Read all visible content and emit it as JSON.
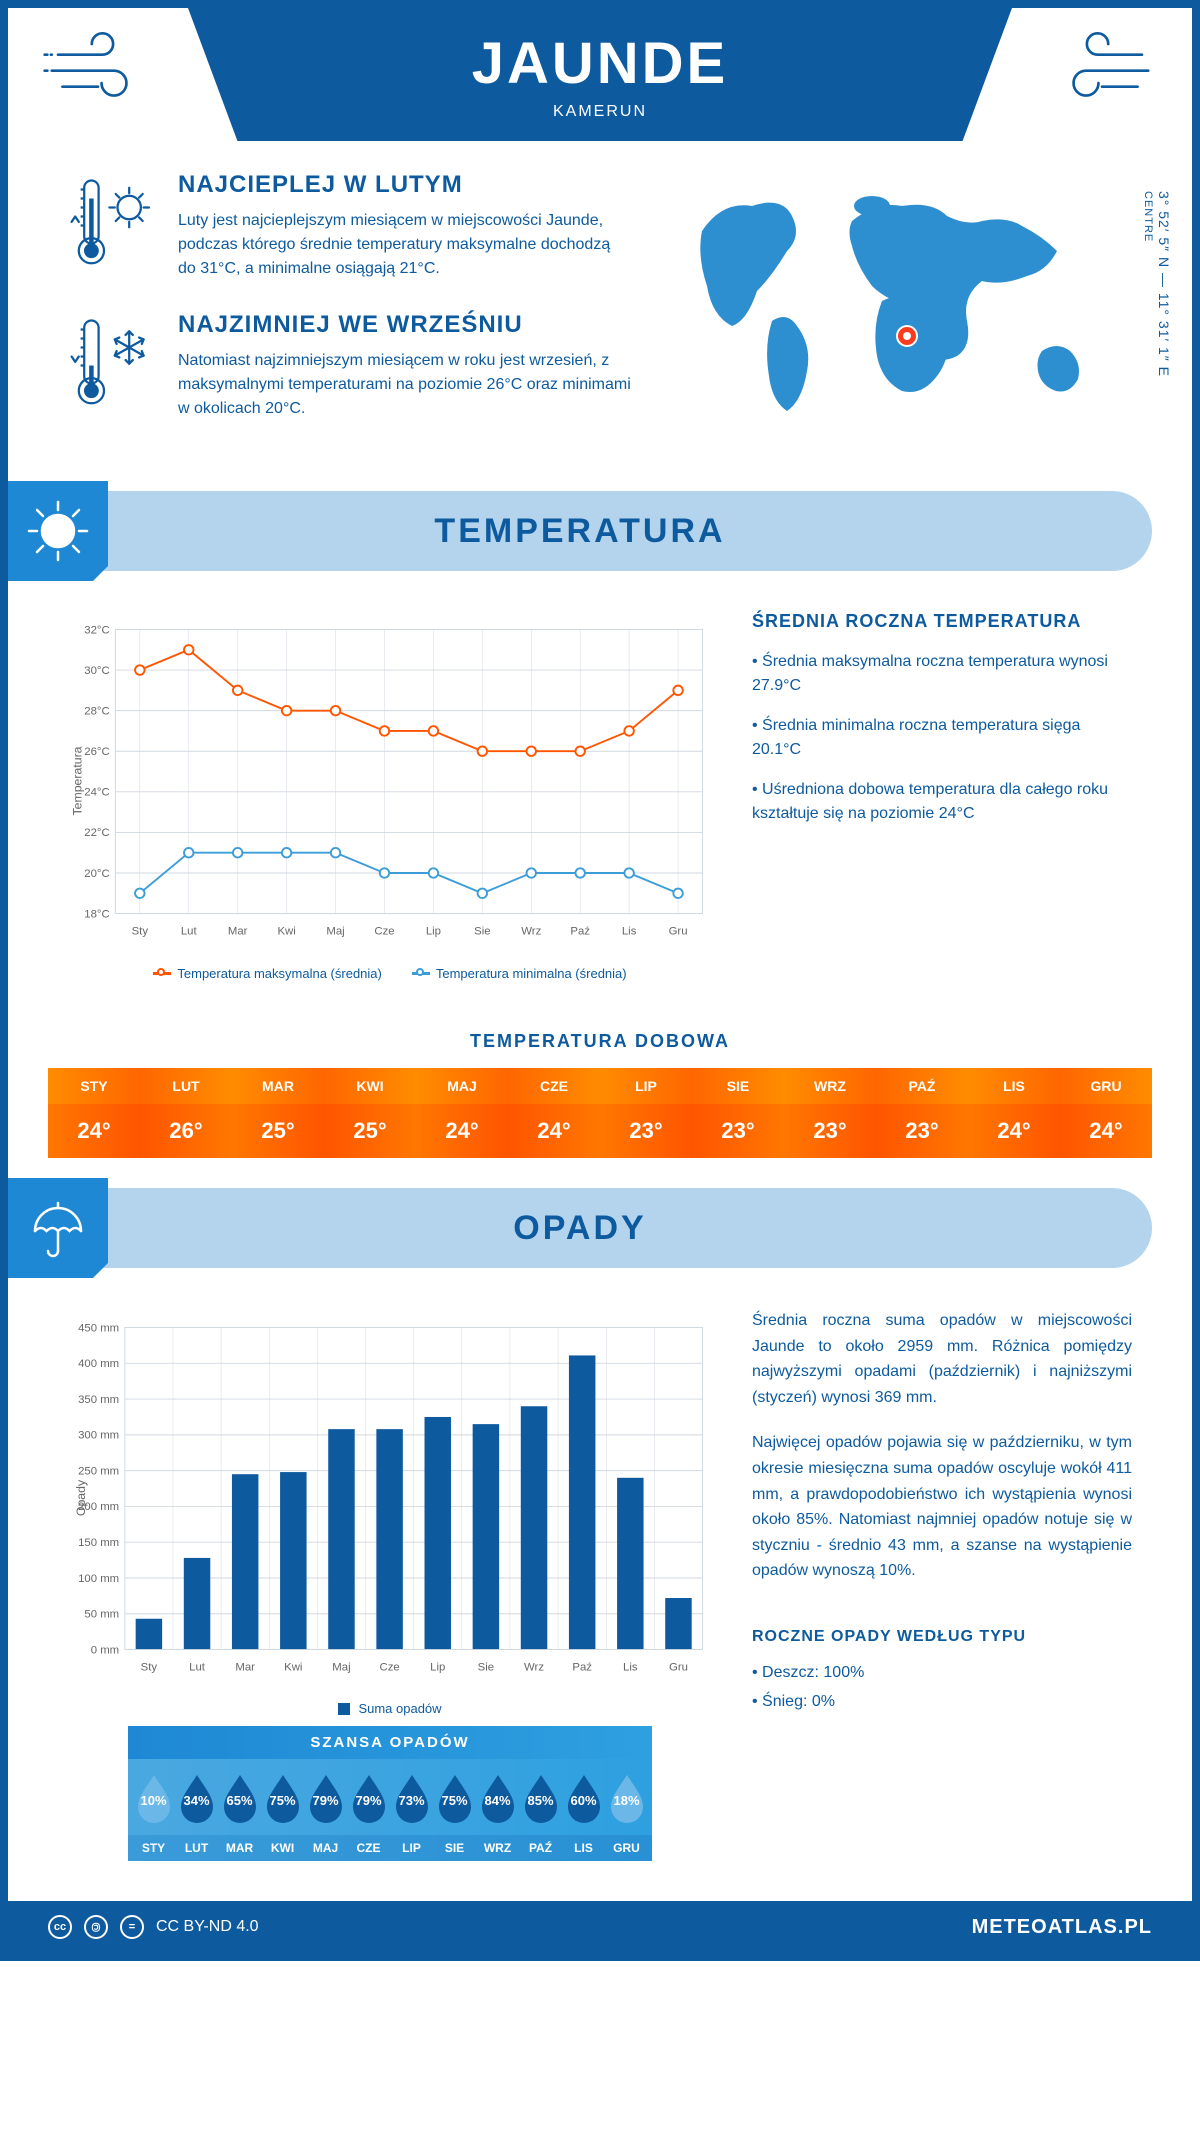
{
  "header": {
    "title": "JAUNDE",
    "subtitle": "KAMERUN"
  },
  "coords": {
    "text": "3° 52′ 5″ N — 11° 31′ 1″ E",
    "region": "CENTRE"
  },
  "intro": {
    "warm": {
      "title": "NAJCIEPLEJ W LUTYM",
      "text": "Luty jest najcieplejszym miesiącem w miejscowości Jaunde, podczas którego średnie temperatury maksymalne dochodzą do 31°C, a minimalne osiągają 21°C."
    },
    "cold": {
      "title": "NAJZIMNIEJ WE WRZEŚNIU",
      "text": "Natomiast najzimniejszym miesiącem w roku jest wrzesień, z maksymalnymi temperaturami na poziomie 26°C oraz minimami w okolicach 20°C."
    }
  },
  "temperature": {
    "sectionTitle": "TEMPERATURA",
    "chart": {
      "type": "line",
      "months": [
        "Sty",
        "Lut",
        "Mar",
        "Kwi",
        "Maj",
        "Cze",
        "Lip",
        "Sie",
        "Wrz",
        "Paź",
        "Lis",
        "Gru"
      ],
      "ylabel": "Temperatura",
      "ylim": [
        18,
        32
      ],
      "ytick_step": 2,
      "ytick_suffix": "°C",
      "series": {
        "max": {
          "values": [
            30,
            31,
            29,
            28,
            28,
            27,
            27,
            26,
            26,
            26,
            27,
            29
          ],
          "color": "#ff5500",
          "label": "Temperatura maksymalna (średnia)"
        },
        "min": {
          "values": [
            19,
            21,
            21,
            21,
            21,
            20,
            20,
            19,
            20,
            20,
            20,
            19
          ],
          "color": "#3d9dd8",
          "label": "Temperatura minimalna (średnia)"
        }
      },
      "grid_color": "#d0d8e0",
      "bg_color": "#ffffff",
      "line_width": 2,
      "marker_size": 5
    },
    "side": {
      "title": "ŚREDNIA ROCZNA TEMPERATURA",
      "bullets": [
        "• Średnia maksymalna roczna temperatura wynosi 27.9°C",
        "• Średnia minimalna roczna temperatura sięga 20.1°C",
        "• Uśredniona dobowa temperatura dla całego roku kształtuje się na poziomie 24°C"
      ]
    },
    "daily": {
      "title": "TEMPERATURA DOBOWA",
      "months": [
        "STY",
        "LUT",
        "MAR",
        "KWI",
        "MAJ",
        "CZE",
        "LIP",
        "SIE",
        "WRZ",
        "PAŹ",
        "LIS",
        "GRU"
      ],
      "values": [
        "24°",
        "26°",
        "25°",
        "25°",
        "24°",
        "24°",
        "23°",
        "23°",
        "23°",
        "23°",
        "24°",
        "24°"
      ],
      "header_bg": "#ff7a00",
      "value_bg": "#ff6600"
    }
  },
  "precip": {
    "sectionTitle": "OPADY",
    "chart": {
      "type": "bar",
      "months": [
        "Sty",
        "Lut",
        "Mar",
        "Kwi",
        "Maj",
        "Cze",
        "Lip",
        "Sie",
        "Wrz",
        "Paź",
        "Lis",
        "Gru"
      ],
      "values": [
        43,
        128,
        245,
        248,
        308,
        308,
        325,
        315,
        340,
        411,
        240,
        72
      ],
      "ylabel": "Opady",
      "ylim": [
        0,
        450
      ],
      "ytick_step": 50,
      "ytick_suffix": " mm",
      "bar_color": "#0d5a9e",
      "grid_color": "#d0d8e0",
      "bar_width": 0.55,
      "legend_label": "Suma opadów"
    },
    "side": {
      "para1": "Średnia roczna suma opadów w miejscowości Jaunde to około 2959 mm. Różnica pomiędzy najwyższymi opadami (październik) i najniższymi (styczeń) wynosi 369 mm.",
      "para2": "Najwięcej opadów pojawia się w październiku, w tym okresie miesięczna suma opadów oscyluje wokół 411 mm, a prawdopodobieństwo ich wystąpienia wynosi około 85%. Natomiast najmniej opadów notuje się w styczniu - średnio 43 mm, a szanse na wystąpienie opadów wynoszą 10%.",
      "typeTitle": "ROCZNE OPADY WEDŁUG TYPU",
      "typeBullets": [
        "• Deszcz: 100%",
        "• Śnieg: 0%"
      ]
    },
    "chance": {
      "title": "SZANSA OPADÓW",
      "months": [
        "STY",
        "LUT",
        "MAR",
        "KWI",
        "MAJ",
        "CZE",
        "LIP",
        "SIE",
        "WRZ",
        "PAŹ",
        "LIS",
        "GRU"
      ],
      "values": [
        "10%",
        "34%",
        "65%",
        "75%",
        "79%",
        "79%",
        "73%",
        "75%",
        "84%",
        "85%",
        "60%",
        "18%"
      ],
      "drop_light": "#6bb8e8",
      "drop_dark": "#0d5a9e"
    }
  },
  "footer": {
    "license": "CC BY-ND 4.0",
    "brand": "METEOATLAS.PL"
  },
  "palette": {
    "primary": "#0d5a9e",
    "light_band": "#b3d4ec",
    "icon_box": "#1e88d4"
  }
}
